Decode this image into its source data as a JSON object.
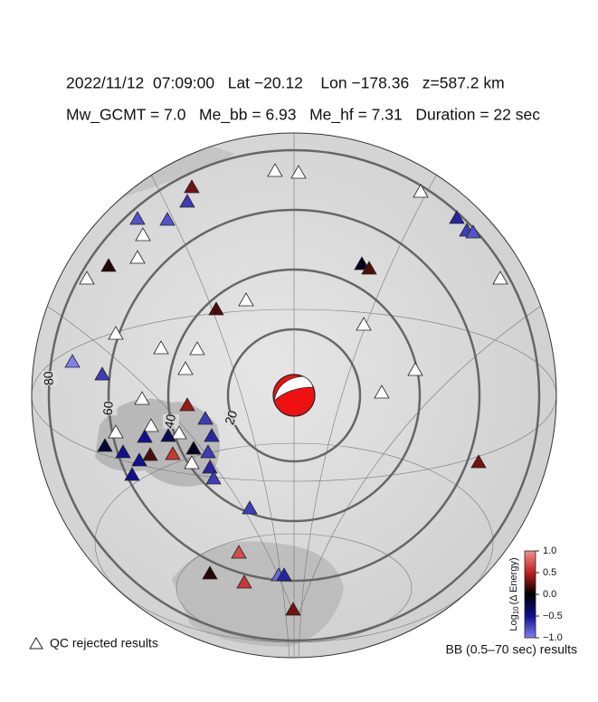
{
  "header": {
    "line1": "2022/11/12  07:09:00   Lat −20.12    Lon −178.36   z=587.2 km",
    "line2": "Mw_GCMT = 7.0   Me_bb = 6.93   Me_hf = 7.31   Duration = 22 sec"
  },
  "map": {
    "rings": [
      20,
      40,
      60,
      80
    ],
    "stations": [
      null,
      null,
      null,
      null,
      null,
      null,
      null,
      null,
      null,
      null,
      null,
      null,
      null,
      null,
      null,
      null,
      null,
      null,
      null,
      null,
      0.3,
      -0.7,
      -0.8,
      -0.8,
      0.1,
      -0.6,
      -0.7,
      -0.8,
      -0.1,
      0.2,
      0.2,
      -1.0,
      -0.7,
      0.4,
      -0.7,
      -0.6,
      -0.5,
      -0.3,
      -0.2,
      -0.5,
      0.2,
      0.6,
      -0.1,
      -0.7,
      -0.6,
      -0.5,
      -0.7,
      -0.5,
      0.3,
      -0.7,
      0.7,
      0.1,
      0.6,
      -0.9,
      -0.6,
      0.3
    ]
  },
  "legend": {
    "rejected": "QC rejected results",
    "accepted": "BB (0.5–70 sec) results"
  },
  "colorbar": {
    "label_base": "Log",
    "label_sub": "10",
    "label_rest": "(Δ Energy)",
    "lim": [
      -1,
      1
    ],
    "ticks": [
      {
        "value": 1,
        "label": "1.0"
      },
      {
        "value": 0.5,
        "label": "0.5"
      },
      {
        "value": 0,
        "label": "0.0"
      },
      {
        "value": -0.5,
        "label": "−0.5"
      },
      {
        "value": -1,
        "label": "−1.0"
      }
    ]
  }
}
